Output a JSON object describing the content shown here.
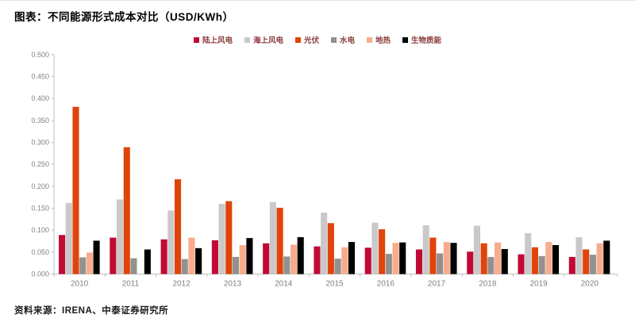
{
  "title": "图表：不同能源形式成本对比（USD/KWh）",
  "footer": "资料来源：IRENA、中泰证券研究所",
  "chart_data": {
    "type": "bar",
    "title": "不同能源形式成本对比（USD/KWh）",
    "unit": "USD/KWh",
    "categories": [
      "2010",
      "2011",
      "2012",
      "2013",
      "2014",
      "2015",
      "2016",
      "2017",
      "2018",
      "2019",
      "2020"
    ],
    "series": [
      {
        "name": "陆上风电",
        "color": "#c00a35",
        "values": [
          0.089,
          0.083,
          0.079,
          0.077,
          0.07,
          0.063,
          0.06,
          0.056,
          0.051,
          0.045,
          0.039
        ]
      },
      {
        "name": "海上风电",
        "color": "#c9c9c9",
        "values": [
          0.162,
          0.17,
          0.145,
          0.16,
          0.164,
          0.14,
          0.117,
          0.111,
          0.11,
          0.093,
          0.084
        ]
      },
      {
        "name": "光伏",
        "color": "#e0440b",
        "values": [
          0.381,
          0.289,
          0.216,
          0.166,
          0.151,
          0.116,
          0.102,
          0.083,
          0.07,
          0.061,
          0.056
        ]
      },
      {
        "name": "水电",
        "color": "#919191",
        "values": [
          0.038,
          0.036,
          0.034,
          0.039,
          0.04,
          0.035,
          0.046,
          0.047,
          0.039,
          0.041,
          0.044
        ]
      },
      {
        "name": "地热",
        "color": "#f9ac8c",
        "values": [
          0.049,
          0,
          0.083,
          0.066,
          0.067,
          0.061,
          0.071,
          0.073,
          0.072,
          0.073,
          0.07
        ]
      },
      {
        "name": "生物质能",
        "color": "#000000",
        "values": [
          0.076,
          0.056,
          0.059,
          0.082,
          0.084,
          0.073,
          0.072,
          0.071,
          0.057,
          0.066,
          0.076
        ]
      }
    ],
    "ylim": [
      0,
      0.5
    ],
    "ytick_step": 0.05,
    "ytick_format_decimals": 3,
    "grid": false,
    "legend_position": "top",
    "axis_color": "#bfbfbf",
    "tick_label_color": "#808080"
  }
}
